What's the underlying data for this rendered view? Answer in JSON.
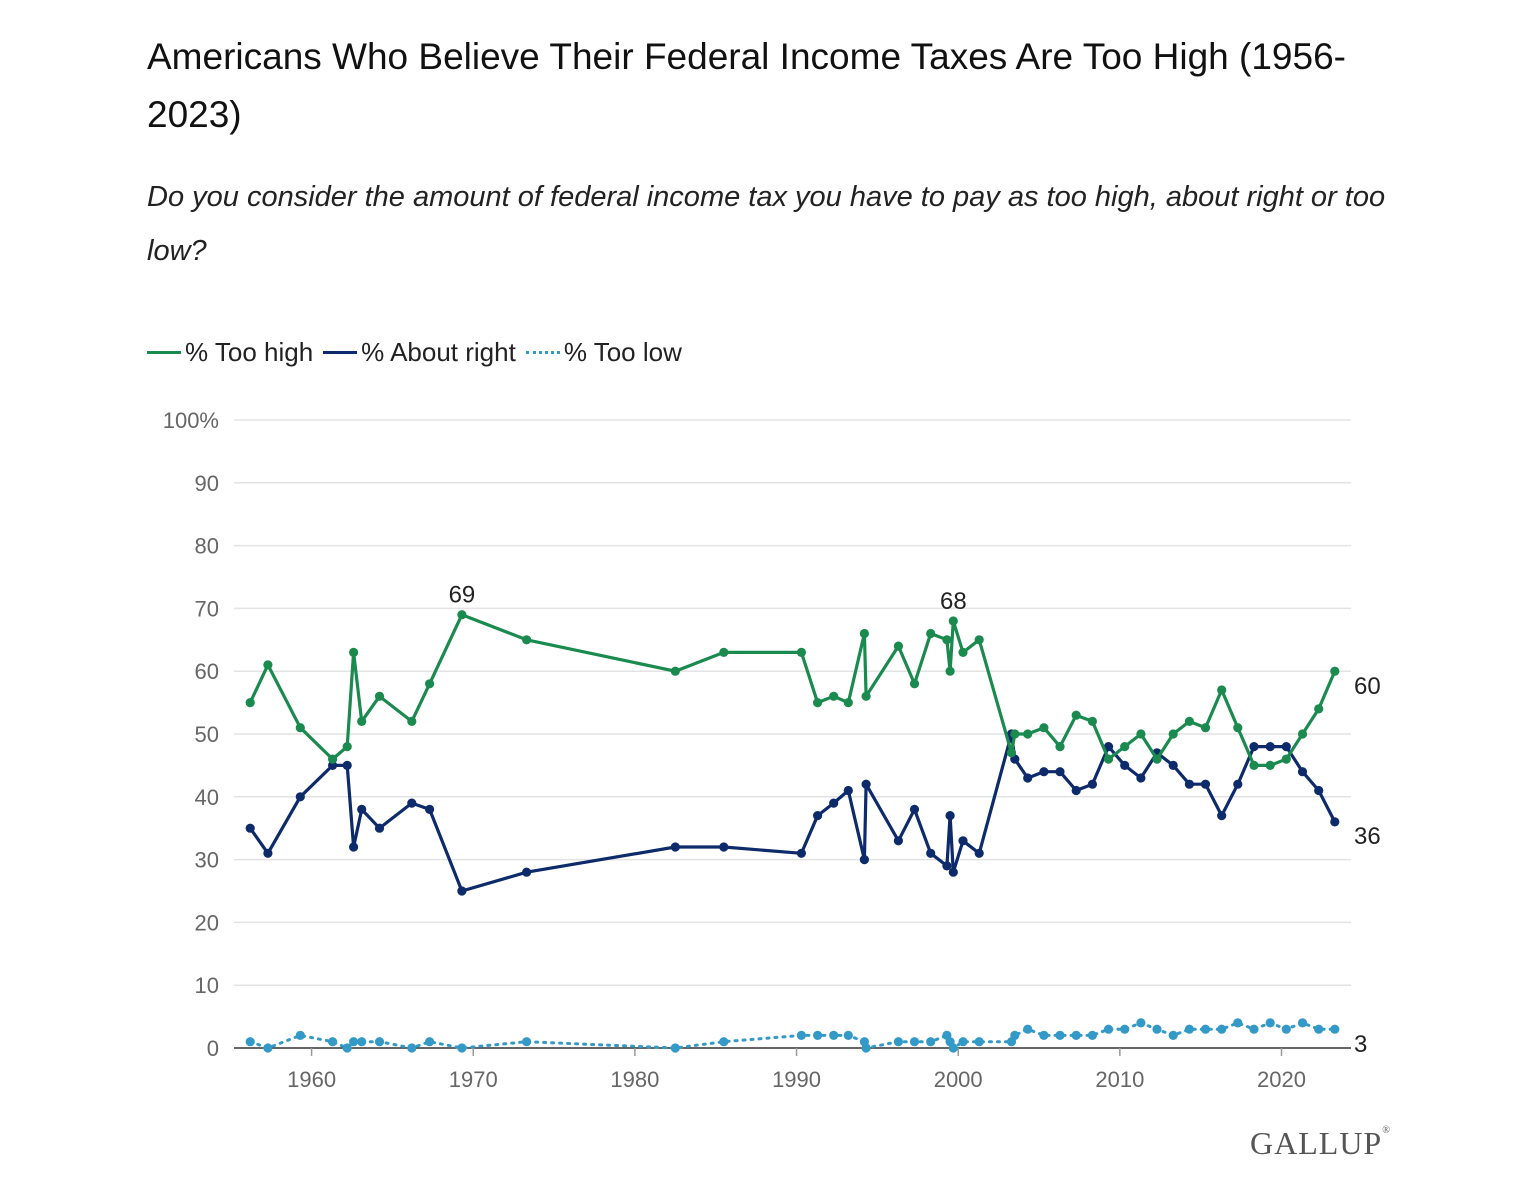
{
  "title": "Americans Who Believe Their Federal Income Taxes Are Too High (1956-2023)",
  "subtitle": "Do you consider the amount of federal income tax you have to pay as too high, about right or too low?",
  "logo": "GALLUP",
  "colors": {
    "too_high": "#1a8a4f",
    "about_right": "#0d2a6b",
    "too_low": "#3399c6",
    "grid": "#e3e3e3",
    "axis": "#333333",
    "tick_text": "#666666"
  },
  "chart_data": {
    "type": "line",
    "title": "Americans Who Believe Their Federal Income Taxes Are Too High (1956-2023)",
    "xlabel": "",
    "ylabel": "",
    "xlim": [
      1955.2,
      2024.3
    ],
    "ylim": [
      0,
      100
    ],
    "x_ticks": [
      "1960",
      "1970",
      "1980",
      "1990",
      "2000",
      "2010",
      "2020"
    ],
    "y_ticks": [
      "0",
      "10",
      "20",
      "30",
      "40",
      "50",
      "60",
      "70",
      "80",
      "90",
      "100%"
    ],
    "grid": true,
    "legend_position": "top-left",
    "series": [
      {
        "name": "% Too high",
        "style": "solid",
        "color": "#1a8a4f",
        "points": [
          [
            1956.2,
            55
          ],
          [
            1957.3,
            61
          ],
          [
            1959.3,
            51
          ],
          [
            1961.3,
            46
          ],
          [
            1962.2,
            48
          ],
          [
            1962.6,
            63
          ],
          [
            1963.1,
            52
          ],
          [
            1964.2,
            56
          ],
          [
            1966.2,
            52
          ],
          [
            1967.3,
            58
          ],
          [
            1969.3,
            69
          ],
          [
            1973.3,
            65
          ],
          [
            1982.5,
            60
          ],
          [
            1985.5,
            63
          ],
          [
            1990.3,
            63
          ],
          [
            1991.3,
            55
          ],
          [
            1992.3,
            56
          ],
          [
            1993.2,
            55
          ],
          [
            1994.2,
            66
          ],
          [
            1994.3,
            56
          ],
          [
            1996.3,
            64
          ],
          [
            1997.3,
            58
          ],
          [
            1998.3,
            66
          ],
          [
            1999.3,
            65
          ],
          [
            1999.5,
            60
          ],
          [
            1999.7,
            68
          ],
          [
            2000.3,
            63
          ],
          [
            2001.3,
            65
          ],
          [
            2003.3,
            47
          ],
          [
            2003.5,
            50
          ],
          [
            2004.3,
            50
          ],
          [
            2005.3,
            51
          ],
          [
            2006.3,
            48
          ],
          [
            2007.3,
            53
          ],
          [
            2008.3,
            52
          ],
          [
            2009.3,
            46
          ],
          [
            2010.3,
            48
          ],
          [
            2011.3,
            50
          ],
          [
            2012.3,
            46
          ],
          [
            2013.3,
            50
          ],
          [
            2014.3,
            52
          ],
          [
            2015.3,
            51
          ],
          [
            2016.3,
            57
          ],
          [
            2017.3,
            51
          ],
          [
            2018.3,
            45
          ],
          [
            2019.3,
            45
          ],
          [
            2020.3,
            46
          ],
          [
            2021.3,
            50
          ],
          [
            2022.3,
            54
          ],
          [
            2023.3,
            60
          ]
        ]
      },
      {
        "name": "% About right",
        "style": "solid",
        "color": "#0d2a6b",
        "points": [
          [
            1956.2,
            35
          ],
          [
            1957.3,
            31
          ],
          [
            1959.3,
            40
          ],
          [
            1961.3,
            45
          ],
          [
            1962.2,
            45
          ],
          [
            1962.6,
            32
          ],
          [
            1963.1,
            38
          ],
          [
            1964.2,
            35
          ],
          [
            1966.2,
            39
          ],
          [
            1967.3,
            38
          ],
          [
            1969.3,
            25
          ],
          [
            1973.3,
            28
          ],
          [
            1982.5,
            32
          ],
          [
            1985.5,
            32
          ],
          [
            1990.3,
            31
          ],
          [
            1991.3,
            37
          ],
          [
            1992.3,
            39
          ],
          [
            1993.2,
            41
          ],
          [
            1994.2,
            30
          ],
          [
            1994.3,
            42
          ],
          [
            1996.3,
            33
          ],
          [
            1997.3,
            38
          ],
          [
            1998.3,
            31
          ],
          [
            1999.3,
            29
          ],
          [
            1999.5,
            37
          ],
          [
            1999.7,
            28
          ],
          [
            2000.3,
            33
          ],
          [
            2001.3,
            31
          ],
          [
            2003.3,
            50
          ],
          [
            2003.5,
            46
          ],
          [
            2004.3,
            43
          ],
          [
            2005.3,
            44
          ],
          [
            2006.3,
            44
          ],
          [
            2007.3,
            41
          ],
          [
            2008.3,
            42
          ],
          [
            2009.3,
            48
          ],
          [
            2010.3,
            45
          ],
          [
            2011.3,
            43
          ],
          [
            2012.3,
            47
          ],
          [
            2013.3,
            45
          ],
          [
            2014.3,
            42
          ],
          [
            2015.3,
            42
          ],
          [
            2016.3,
            37
          ],
          [
            2017.3,
            42
          ],
          [
            2018.3,
            48
          ],
          [
            2019.3,
            48
          ],
          [
            2020.3,
            48
          ],
          [
            2021.3,
            44
          ],
          [
            2022.3,
            41
          ],
          [
            2023.3,
            36
          ]
        ]
      },
      {
        "name": "% Too low",
        "style": "dotted",
        "color": "#3399c6",
        "points": [
          [
            1956.2,
            1
          ],
          [
            1957.3,
            0
          ],
          [
            1959.3,
            2
          ],
          [
            1961.3,
            1
          ],
          [
            1962.2,
            0
          ],
          [
            1962.6,
            1
          ],
          [
            1963.1,
            1
          ],
          [
            1964.2,
            1
          ],
          [
            1966.2,
            0
          ],
          [
            1967.3,
            1
          ],
          [
            1969.3,
            0
          ],
          [
            1973.3,
            1
          ],
          [
            1982.5,
            0
          ],
          [
            1985.5,
            1
          ],
          [
            1990.3,
            2
          ],
          [
            1991.3,
            2
          ],
          [
            1992.3,
            2
          ],
          [
            1993.2,
            2
          ],
          [
            1994.2,
            1
          ],
          [
            1994.3,
            0
          ],
          [
            1996.3,
            1
          ],
          [
            1997.3,
            1
          ],
          [
            1998.3,
            1
          ],
          [
            1999.3,
            2
          ],
          [
            1999.5,
            1
          ],
          [
            1999.7,
            0
          ],
          [
            2000.3,
            1
          ],
          [
            2001.3,
            1
          ],
          [
            2003.3,
            1
          ],
          [
            2003.5,
            2
          ],
          [
            2004.3,
            3
          ],
          [
            2005.3,
            2
          ],
          [
            2006.3,
            2
          ],
          [
            2007.3,
            2
          ],
          [
            2008.3,
            2
          ],
          [
            2009.3,
            3
          ],
          [
            2010.3,
            3
          ],
          [
            2011.3,
            4
          ],
          [
            2012.3,
            3
          ],
          [
            2013.3,
            2
          ],
          [
            2014.3,
            3
          ],
          [
            2015.3,
            3
          ],
          [
            2016.3,
            3
          ],
          [
            2017.3,
            4
          ],
          [
            2018.3,
            3
          ],
          [
            2019.3,
            4
          ],
          [
            2020.3,
            3
          ],
          [
            2021.3,
            4
          ],
          [
            2022.3,
            3
          ],
          [
            2023.3,
            3
          ]
        ]
      }
    ],
    "annotations": [
      {
        "x": 1969.3,
        "y": 69,
        "text": "69",
        "series": "% Too high"
      },
      {
        "x": 1999.7,
        "y": 68,
        "text": "68",
        "series": "% Too high"
      }
    ],
    "end_labels": [
      {
        "y": 60,
        "text": "60",
        "series": "% Too high"
      },
      {
        "y": 36,
        "text": "36",
        "series": "% About right"
      },
      {
        "y": 3,
        "text": "3",
        "series": "% Too low"
      }
    ]
  }
}
